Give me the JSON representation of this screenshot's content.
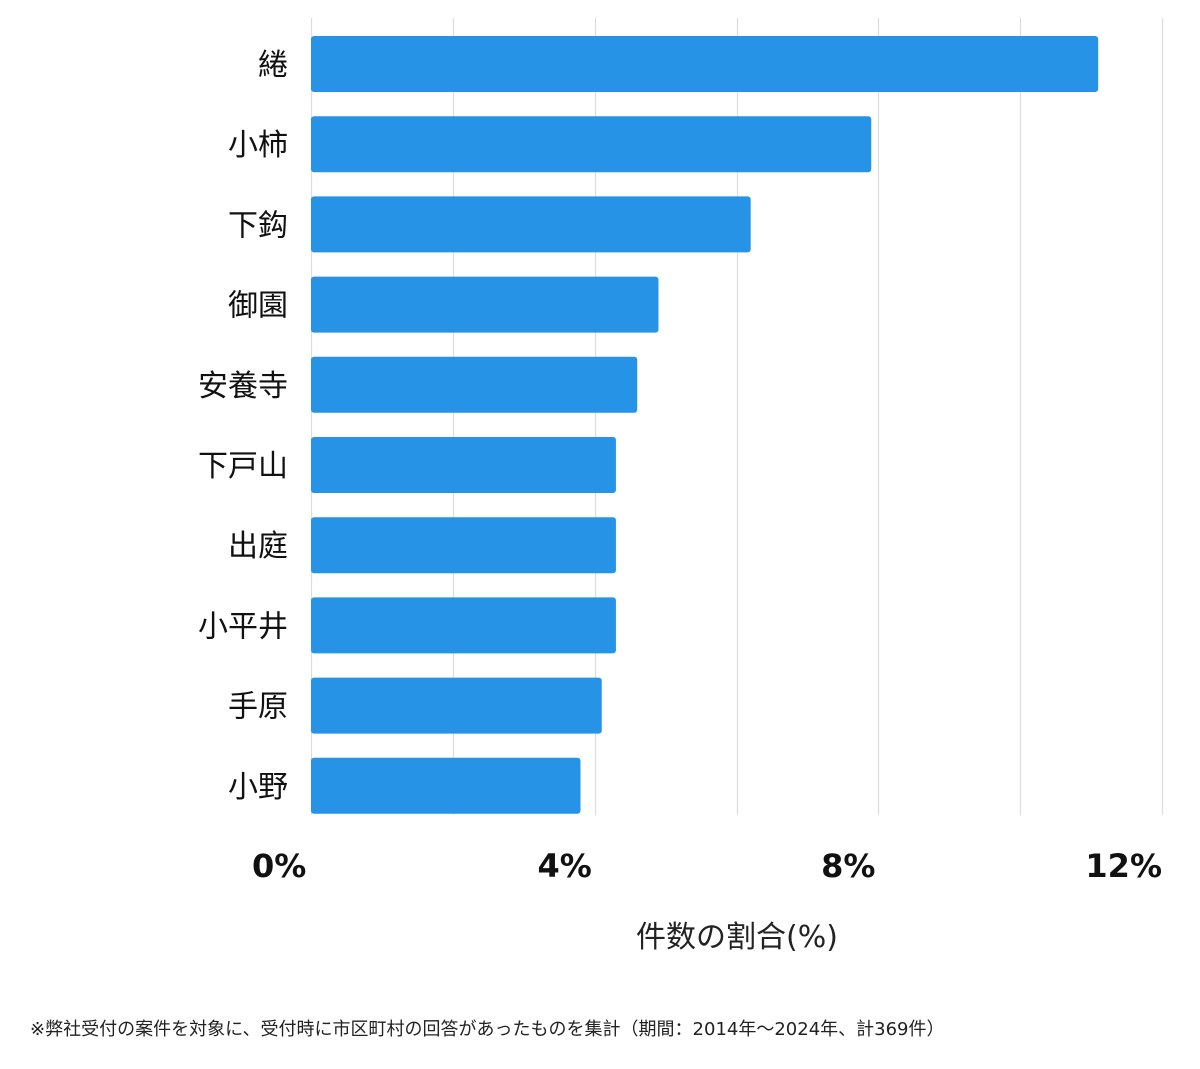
{
  "chart_data": {
    "type": "bar",
    "orientation": "horizontal",
    "categories": [
      "綣",
      "小柿",
      "下鈎",
      "御園",
      "安養寺",
      "下戸山",
      "出庭",
      "小平井",
      "手原",
      "小野"
    ],
    "values": [
      11.1,
      7.9,
      6.2,
      4.9,
      4.6,
      4.3,
      4.3,
      4.3,
      4.1,
      3.8
    ],
    "xlim": [
      0,
      12
    ],
    "xticks": [
      0,
      4,
      8,
      12
    ],
    "xtick_labels": [
      "0%",
      "4%",
      "8%",
      "12%"
    ],
    "grid_step": 2,
    "xlabel": "件数の割合(%)",
    "bar_color": "#2793e6",
    "grid_color": "#dddddd"
  },
  "footnote": "※弊社受付の案件を対象に、受付時に市区町村の回答があったものを集計（期間：2014年～2024年、計369件）"
}
